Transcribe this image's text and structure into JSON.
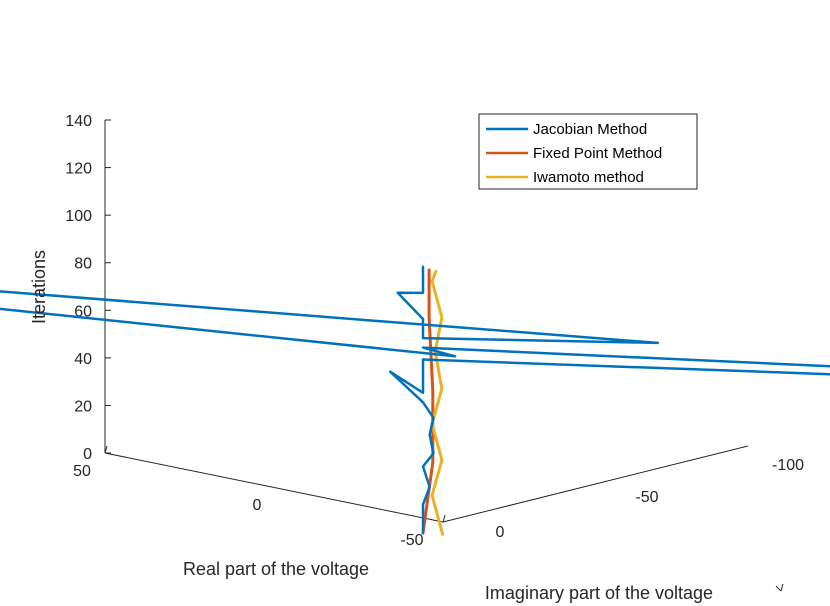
{
  "chart_data": {
    "type": "line",
    "projection": "3d",
    "title": "",
    "axes": {
      "z": {
        "label": "Iterations",
        "range": [
          0,
          140
        ],
        "ticks": [
          {
            "value": 0,
            "label": "0"
          },
          {
            "value": 20,
            "label": "20"
          },
          {
            "value": 40,
            "label": "40"
          },
          {
            "value": 60,
            "label": "60"
          },
          {
            "value": 80,
            "label": "80"
          },
          {
            "value": 100,
            "label": "100"
          },
          {
            "value": 120,
            "label": "120"
          },
          {
            "value": 140,
            "label": "140"
          }
        ]
      },
      "real": {
        "label": "Real part of the voltage",
        "ticks": [
          {
            "value": 50,
            "label": "50"
          },
          {
            "value": 0,
            "label": "0"
          },
          {
            "value": -50,
            "label": "-50"
          }
        ]
      },
      "imag": {
        "label": "Imaginary part of the voltage",
        "ticks": [
          {
            "value": 0,
            "label": "0"
          },
          {
            "value": -50,
            "label": "-50"
          },
          {
            "value": -100,
            "label": "-100"
          }
        ]
      }
    },
    "grid": false,
    "legend": {
      "position": "top-right",
      "entries": [
        "Jacobian Method",
        "Fixed Point Method",
        "Iwamoto method"
      ]
    },
    "series": [
      {
        "name": "Jacobian Method",
        "color": "#0072BD",
        "points": [
          {
            "real": -2,
            "imag": 11,
            "iter": 0
          },
          {
            "real": -2,
            "imag": 11,
            "iter": 5
          },
          {
            "real": -2,
            "imag": 11,
            "iter": 12
          },
          {
            "real": -3,
            "imag": 11,
            "iter": 20
          },
          {
            "real": -2,
            "imag": 11,
            "iter": 28
          },
          {
            "real": -4,
            "imag": 12,
            "iter": 35
          },
          {
            "real": -3,
            "imag": 11,
            "iter": 42
          },
          {
            "real": -4,
            "imag": 12,
            "iter": 50
          },
          {
            "real": -2,
            "imag": 11,
            "iter": 55
          },
          {
            "real": 6,
            "imag": 4,
            "iter": 61
          },
          {
            "real": -2,
            "imag": 11,
            "iter": 59
          },
          {
            "real": -2,
            "imag": 11,
            "iter": 66
          },
          {
            "real": -2,
            "imag": 11,
            "iter": 73
          },
          {
            "real": -130,
            "imag": -115,
            "iter": 88
          },
          {
            "real": -2,
            "imag": 11,
            "iter": 78
          },
          {
            "real": -9,
            "imag": 16,
            "iter": 80
          },
          {
            "real": 117,
            "imag": 106,
            "iter": 85
          },
          {
            "real": -25,
            "imag": -15,
            "iter": 85
          },
          {
            "real": -2,
            "imag": 11,
            "iter": 82
          },
          {
            "real": -2,
            "imag": 11,
            "iter": 90
          },
          {
            "real": 4,
            "imag": 6,
            "iter": 96
          },
          {
            "real": -2,
            "imag": 11,
            "iter": 101
          },
          {
            "real": -2,
            "imag": 11,
            "iter": 106
          },
          {
            "real": -2,
            "imag": 11,
            "iter": 112
          }
        ]
      },
      {
        "name": "Fixed Point Method",
        "color": "#D95319",
        "points": [
          {
            "real": -2,
            "imag": 11,
            "iter": 0
          },
          {
            "real": -3,
            "imag": 10,
            "iter": 30
          },
          {
            "real": -3,
            "imag": 10,
            "iter": 60
          },
          {
            "real": -2,
            "imag": 9,
            "iter": 90
          },
          {
            "real": -2,
            "imag": 9,
            "iter": 110
          }
        ]
      },
      {
        "name": "Iwamoto method",
        "color": "#EDB120",
        "points": [
          {
            "real": -4,
            "imag": 9,
            "iter": 0
          },
          {
            "real": -2,
            "imag": 8,
            "iter": 15
          },
          {
            "real": -3,
            "imag": 7,
            "iter": 30
          },
          {
            "real": -2,
            "imag": 8,
            "iter": 45
          },
          {
            "real": -3,
            "imag": 7,
            "iter": 60
          },
          {
            "real": -2,
            "imag": 7,
            "iter": 75
          },
          {
            "real": -3,
            "imag": 7,
            "iter": 90
          },
          {
            "real": -2,
            "imag": 8,
            "iter": 105
          },
          {
            "real": -3,
            "imag": 9,
            "iter": 110
          }
        ]
      }
    ]
  }
}
